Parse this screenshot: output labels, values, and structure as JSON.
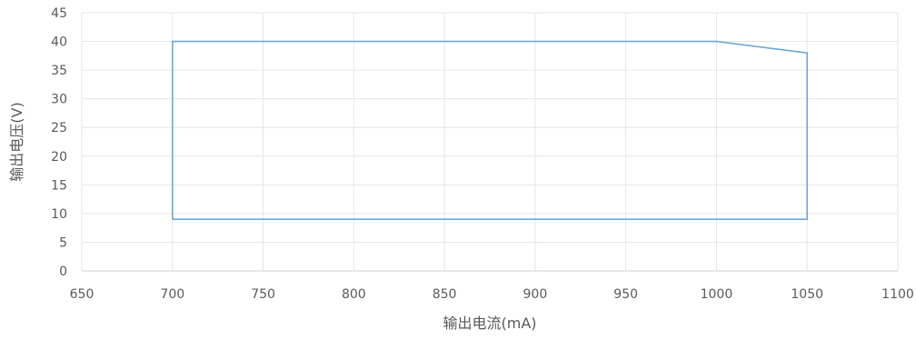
{
  "chart_data": {
    "type": "line",
    "title": "",
    "xlabel": "输出电流(mA)",
    "ylabel": "输出电压(V)",
    "xlim": [
      650,
      1100
    ],
    "ylim": [
      0,
      45
    ],
    "x_ticks": [
      "650",
      "700",
      "750",
      "800",
      "850",
      "900",
      "950",
      "1000",
      "1050",
      "1100"
    ],
    "y_ticks": [
      "0",
      "5",
      "10",
      "15",
      "20",
      "25",
      "30",
      "35",
      "40",
      "45"
    ],
    "grid": true,
    "legend": "none",
    "series": [
      {
        "color": "#6fa8d6",
        "points": [
          {
            "x": 700,
            "y": 9
          },
          {
            "x": 700,
            "y": 40
          },
          {
            "x": 1000,
            "y": 40
          },
          {
            "x": 1050,
            "y": 38
          },
          {
            "x": 1050,
            "y": 9
          },
          {
            "x": 700,
            "y": 9
          }
        ]
      }
    ]
  }
}
